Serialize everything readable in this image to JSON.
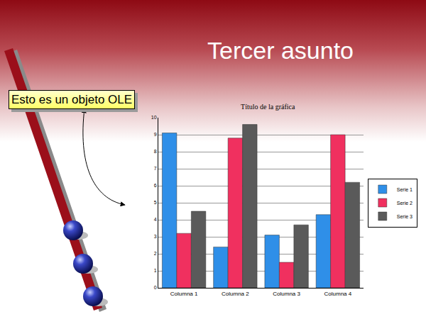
{
  "slide": {
    "title": "Tercer asunto",
    "callout": "Esto es un objeto OLE"
  },
  "chart_data": {
    "type": "bar",
    "title": "Título de la gráfica",
    "categories": [
      "Columna 1",
      "Columna 2",
      "Columna 3",
      "Columna 4"
    ],
    "series": [
      {
        "name": "Serie 1",
        "color": "#2f8fe8",
        "values": [
          9.1,
          2.4,
          3.1,
          4.3
        ]
      },
      {
        "name": "Serie 2",
        "color": "#f0305f",
        "values": [
          3.2,
          8.8,
          1.5,
          9.0
        ]
      },
      {
        "name": "Serie 3",
        "color": "#5a5a5a",
        "values": [
          4.5,
          9.6,
          3.7,
          6.2
        ]
      }
    ],
    "ylim": [
      0,
      10
    ],
    "yticks": [
      0,
      1,
      2,
      3,
      4,
      5,
      6,
      7,
      8,
      9,
      10
    ],
    "grid": true,
    "legend": "right"
  }
}
